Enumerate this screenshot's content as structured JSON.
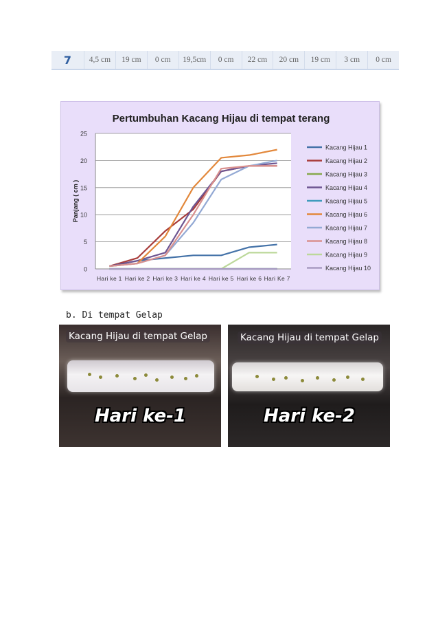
{
  "table": {
    "row_number": "7",
    "cells": [
      "4,5 cm",
      "19 cm",
      "0 cm",
      "19,5cm",
      "0 cm",
      "22 cm",
      "20 cm",
      "19 cm",
      "3 cm",
      "0 cm"
    ]
  },
  "chart_data": {
    "type": "line",
    "title": "Pertumbuhan Kacang Hijau di tempat terang",
    "ylabel": "Panjang ( cm )",
    "xlabel": "",
    "ylim": [
      0,
      25
    ],
    "yticks": [
      0,
      5,
      10,
      15,
      20,
      25
    ],
    "categories": [
      "Hari ke 1",
      "Hari ke 2",
      "Hari ke 3",
      "Hari ke 4",
      "Hari ke 5",
      "Hari ke 6",
      "Hari Ke 7"
    ],
    "grid": true,
    "legend_position": "right",
    "series": [
      {
        "name": "Kacang Hijau 1",
        "color": "#4472a8",
        "values": [
          0.5,
          1.5,
          2,
          2.5,
          2.5,
          4,
          4.5
        ]
      },
      {
        "name": "Kacang Hijau 2",
        "color": "#a83c3a",
        "values": [
          0.5,
          2,
          7,
          11,
          18,
          19,
          19
        ]
      },
      {
        "name": "Kacang Hijau 3",
        "color": "#86a84c",
        "values": [
          0,
          0,
          0,
          0,
          0,
          0,
          0
        ]
      },
      {
        "name": "Kacang Hijau 4",
        "color": "#6e5591",
        "values": [
          0.5,
          1.5,
          3,
          11.5,
          18,
          19,
          19.5
        ]
      },
      {
        "name": "Kacang Hijau 5",
        "color": "#3f9bbd",
        "values": [
          0,
          0,
          0,
          0,
          0,
          0,
          0
        ]
      },
      {
        "name": "Kacang Hijau 6",
        "color": "#e2873a",
        "values": [
          0.5,
          1,
          6,
          15,
          20.5,
          21,
          22
        ]
      },
      {
        "name": "Kacang Hijau 7",
        "color": "#93a9d4",
        "values": [
          0.5,
          1,
          2.5,
          8.5,
          16.5,
          19,
          20
        ]
      },
      {
        "name": "Kacang Hijau 8",
        "color": "#d9908e",
        "values": [
          0.5,
          1,
          2.5,
          10,
          18.5,
          19,
          19
        ]
      },
      {
        "name": "Kacang Hijau 9",
        "color": "#bcd89a",
        "values": [
          0,
          0,
          0,
          0,
          0,
          3,
          3
        ]
      },
      {
        "name": "Kacang Hijau 10",
        "color": "#a99bc2",
        "values": [
          0,
          0,
          0,
          0,
          0,
          0,
          0
        ]
      }
    ]
  },
  "section": {
    "heading": "b.  Di tempat Gelap"
  },
  "photos": [
    {
      "title": "Kacang Hijau di tempat Gelap",
      "day": "Hari ke-1"
    },
    {
      "title": "Kacang Hijau di tempat Gelap",
      "day": "Hari ke-2"
    }
  ]
}
